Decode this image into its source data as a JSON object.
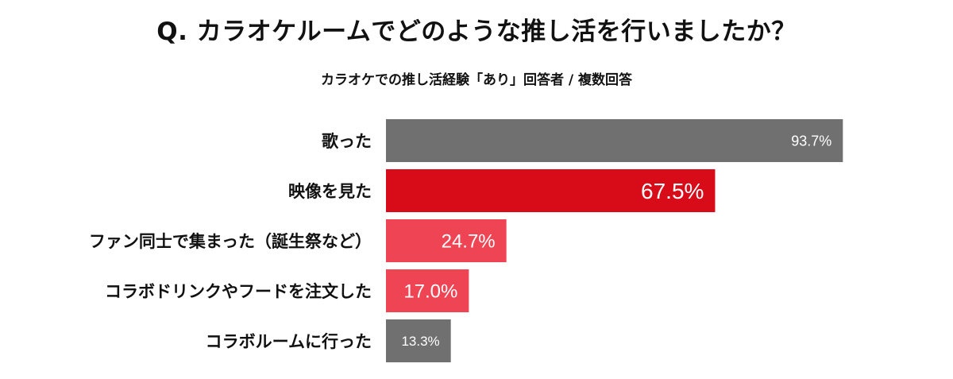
{
  "chart_data": {
    "type": "bar",
    "orientation": "horizontal",
    "title": "Q. カラオケルームでどのような推し活を行いましたか？",
    "subtitle": "カラオケでの推し活経験「あり」回答者 / 複数回答",
    "categories": [
      "歌った",
      "映像を見た",
      "ファン同士で集まった（誕生祭など）",
      "コラボドリンクやフードを注文した",
      "コラボルームに行った"
    ],
    "values": [
      93.7,
      67.5,
      24.7,
      17.0,
      13.3
    ],
    "value_labels": [
      "93.7%",
      "67.5%",
      "24.7%",
      "17.0%",
      "13.3%"
    ],
    "bar_colors": [
      "#707070",
      "#d80c18",
      "#ef4454",
      "#ef4454",
      "#707070"
    ],
    "xlim": [
      0,
      100
    ],
    "grid": false,
    "legend": "none"
  }
}
